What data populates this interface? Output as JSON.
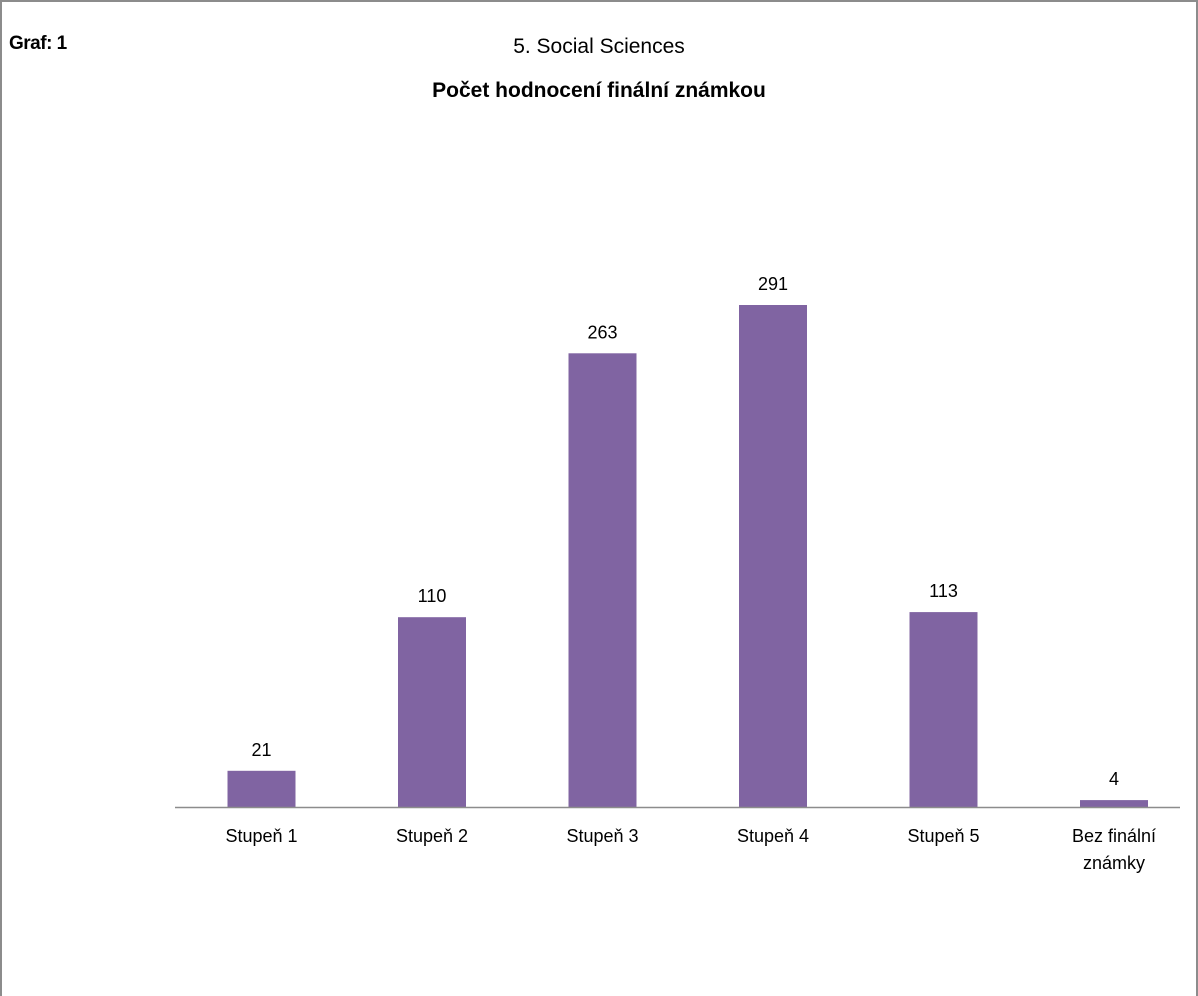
{
  "figure_label": "Graf: 1",
  "colors": {
    "bar": "#8064a2",
    "axis": "#8c8c8c",
    "frame": "#8c8c8c"
  },
  "chart_data": {
    "type": "bar",
    "title": "5. Social Sciences",
    "subtitle": "Počet hodnocení finální známkou",
    "xlabel": "",
    "ylabel": "",
    "categories": [
      "Stupeň 1",
      "Stupeň 2",
      "Stupeň 3",
      "Stupeň 4",
      "Stupeň 5",
      "Bez finální známky"
    ],
    "values": [
      21,
      110,
      263,
      291,
      113,
      4
    ],
    "ylim": [
      0,
      291
    ],
    "grid": false,
    "legend": "none",
    "data_labels": true
  }
}
